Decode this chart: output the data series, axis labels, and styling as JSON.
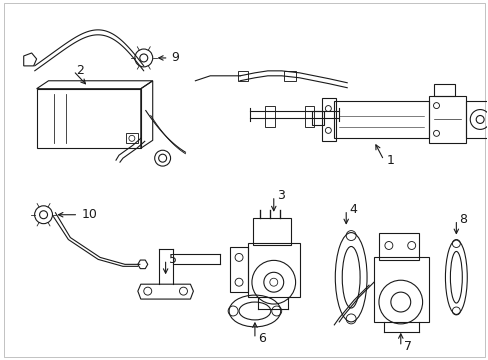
{
  "background_color": "#ffffff",
  "line_color": "#1a1a1a",
  "fig_width": 4.89,
  "fig_height": 3.6,
  "dpi": 100,
  "border": true,
  "border_color": "#cccccc"
}
